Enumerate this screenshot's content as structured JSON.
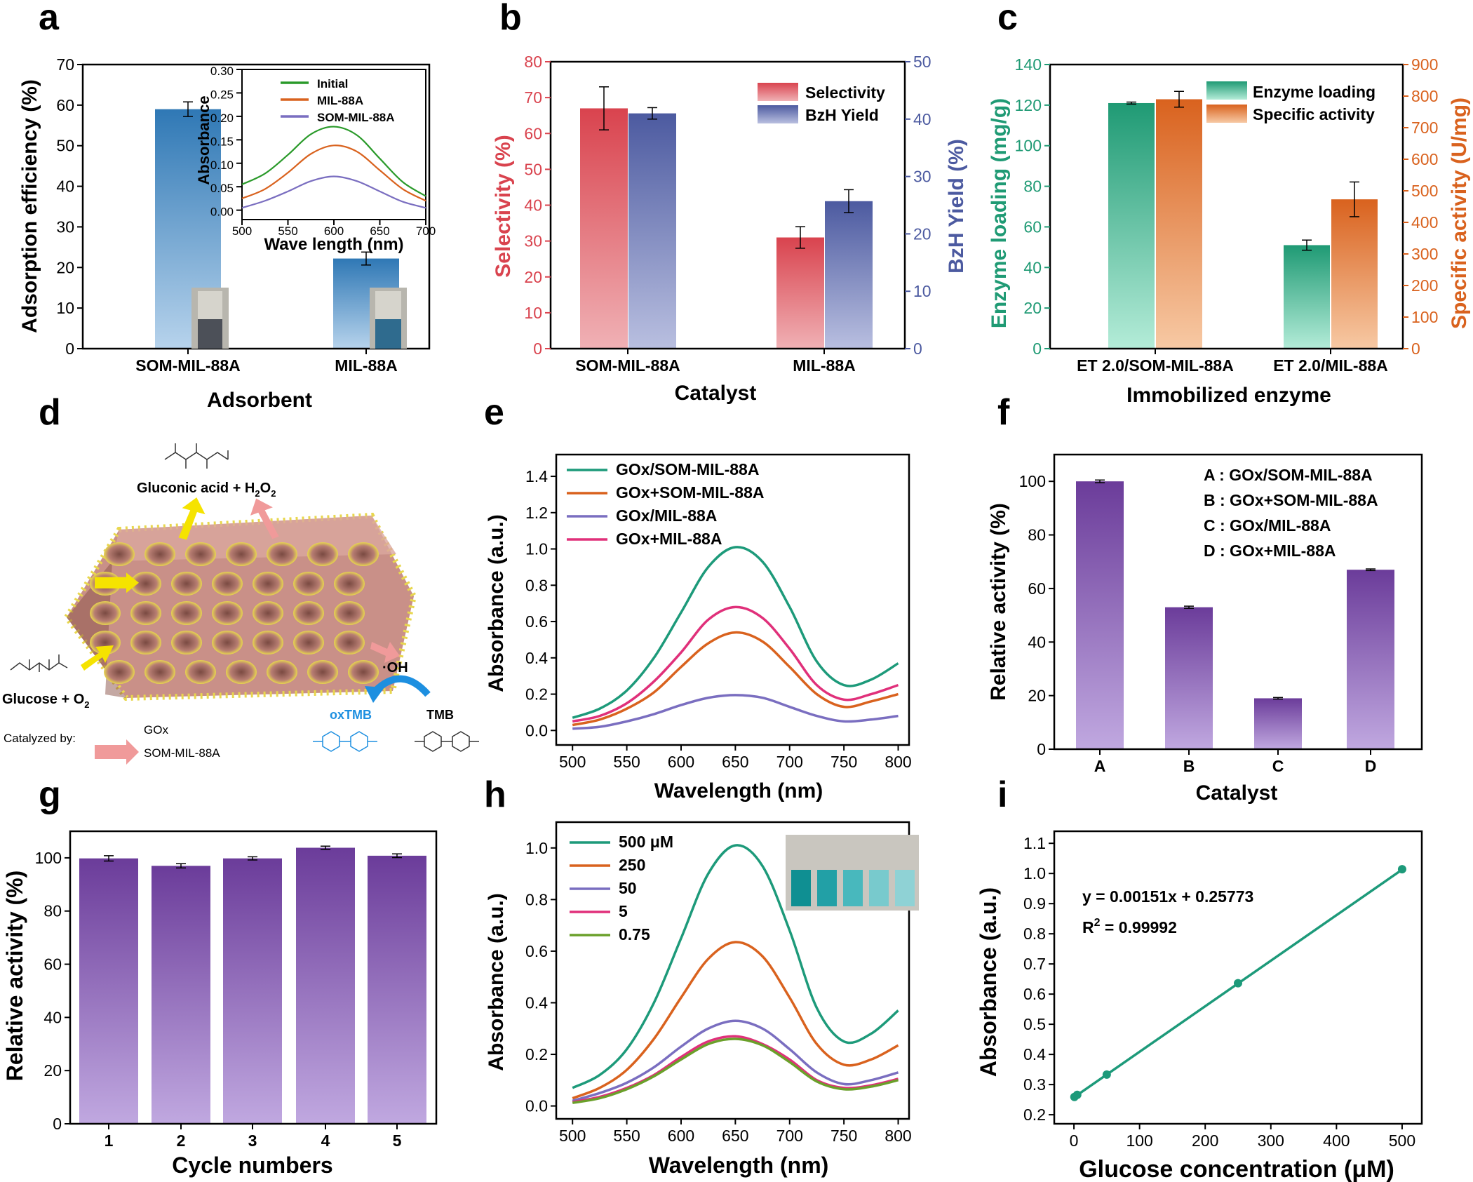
{
  "panels": {
    "a": {
      "letter": "a",
      "xlabel": "Adsorbent",
      "ylabel": "Adsorption efficiency (%)",
      "categories": [
        "SOM-MIL-88A",
        "MIL-88A"
      ],
      "yticks": [
        "0",
        "10",
        "20",
        "30",
        "40",
        "50",
        "60",
        "70"
      ],
      "inset": {
        "xlabel": "Wave length (nm)",
        "ylabel": "Absorbance",
        "xticks": [
          "500",
          "550",
          "600",
          "650",
          "700"
        ],
        "yticks": [
          "0.00",
          "0.05",
          "0.10",
          "0.15",
          "0.20",
          "0.25",
          "0.30"
        ],
        "legend": [
          "Initial",
          "MIL-88A",
          "SOM-MIL-88A"
        ]
      }
    },
    "b": {
      "letter": "b",
      "xlabel": "Catalyst",
      "ylabel_left": "Selectivity (%)",
      "ylabel_right": "BzH Yield (%)",
      "categories": [
        "SOM-MIL-88A",
        "MIL-88A"
      ],
      "yticks_left": [
        "0",
        "10",
        "20",
        "30",
        "40",
        "50",
        "60",
        "70",
        "80"
      ],
      "yticks_right": [
        "0",
        "10",
        "20",
        "30",
        "40",
        "50"
      ],
      "legend": [
        "Selectivity",
        "BzH Yield"
      ]
    },
    "c": {
      "letter": "c",
      "xlabel": "Immobilized enzyme",
      "ylabel_left": "Enzyme loading (mg/g)",
      "ylabel_right": "Specific activity (U/mg)",
      "categories": [
        "ET 2.0/SOM-MIL-88A",
        "ET 2.0/MIL-88A"
      ],
      "yticks_left": [
        "0",
        "20",
        "40",
        "60",
        "80",
        "100",
        "120",
        "140"
      ],
      "yticks_right": [
        "0",
        "100",
        "200",
        "300",
        "400",
        "500",
        "600",
        "700",
        "800",
        "900"
      ],
      "legend": [
        "Enzyme loading",
        "Specific activity"
      ]
    },
    "d": {
      "letter": "d",
      "product": "Gluconic acid + H",
      "product_sub": "2",
      "product_tail": "O",
      "product_sub2": "2",
      "substrate": "Glucose + O",
      "substrate_sub": "2",
      "oh": "·OH",
      "ox_tmb": "oxTMB",
      "tmb": "TMB",
      "catalyzed_by": "Catalyzed by:",
      "key_gox": "GOx",
      "key_som": "SOM-MIL-88A"
    },
    "e": {
      "letter": "e",
      "xlabel": "Wavelength (nm)",
      "ylabel": "Absorbance (a.u.)",
      "xticks": [
        "500",
        "550",
        "600",
        "650",
        "700",
        "750",
        "800"
      ],
      "yticks": [
        "0.0",
        "0.2",
        "0.4",
        "0.6",
        "0.8",
        "1.0",
        "1.2",
        "1.4"
      ],
      "legend": [
        "GOx/SOM-MIL-88A",
        "GOx+SOM-MIL-88A",
        "GOx/MIL-88A",
        "GOx+MIL-88A"
      ]
    },
    "f": {
      "letter": "f",
      "xlabel": "Catalyst",
      "ylabel": "Relative activity (%)",
      "categories": [
        "A",
        "B",
        "C",
        "D"
      ],
      "yticks": [
        "0",
        "20",
        "40",
        "60",
        "80",
        "100"
      ],
      "legend": [
        "A : GOx/SOM-MIL-88A",
        "B : GOx+SOM-MIL-88A",
        "C : GOx/MIL-88A",
        "D : GOx+MIL-88A"
      ]
    },
    "g": {
      "letter": "g",
      "xlabel": "Cycle numbers",
      "ylabel": "Relative activity (%)",
      "categories": [
        "1",
        "2",
        "3",
        "4",
        "5"
      ],
      "yticks": [
        "0",
        "20",
        "40",
        "60",
        "80",
        "100"
      ]
    },
    "h": {
      "letter": "h",
      "xlabel": "Wavelength (nm)",
      "ylabel": "Absorbance (a.u.)",
      "xticks": [
        "500",
        "550",
        "600",
        "650",
        "700",
        "750",
        "800"
      ],
      "yticks": [
        "0.0",
        "0.2",
        "0.4",
        "0.6",
        "0.8",
        "1.0"
      ],
      "legend": [
        "500 μM",
        "250",
        "50",
        "5",
        "0.75"
      ]
    },
    "i": {
      "letter": "i",
      "xlabel": "Glucose concentration (μM)",
      "ylabel": "Absorbance (a.u.)",
      "xticks": [
        "0",
        "100",
        "200",
        "300",
        "400",
        "500"
      ],
      "yticks": [
        "0.2",
        "0.3",
        "0.4",
        "0.5",
        "0.6",
        "0.7",
        "0.8",
        "0.9",
        "1.0",
        "1.1"
      ],
      "equation": "y = 0.00151x + 0.25773",
      "r2_prefix": "R",
      "r2_sup": "2",
      "r2_suffix": " = 0.99992"
    }
  },
  "colors": {
    "blue_bar": "#2f78b5",
    "red_bar": "#d9434e",
    "navy_bar": "#4c5aa0",
    "green_bar": "#1f9a74",
    "orange_bar": "#d9621e",
    "purple_bar": "#6b3c9a",
    "teal_line": "#1d9a7a",
    "orange_line": "#d9621e",
    "lavender_line": "#7a6ec0",
    "magenta_line": "#e0307a",
    "olive_line": "#6aa02a",
    "inset_green": "#2a9a2a"
  },
  "chart_data": [
    {
      "panel": "a",
      "type": "bar",
      "categories": [
        "SOM-MIL-88A",
        "MIL-88A"
      ],
      "values": [
        59.0,
        22.2
      ],
      "errors": [
        1.8,
        1.6
      ],
      "xlabel": "Adsorbent",
      "ylabel": "Adsorption efficiency (%)",
      "ylim": [
        0,
        70
      ]
    },
    {
      "panel": "a-inset",
      "type": "line",
      "xlabel": "Wave length (nm)",
      "ylabel": "Absorbance",
      "xlim": [
        500,
        700
      ],
      "ylim": [
        -0.02,
        0.3
      ],
      "x": [
        500,
        525,
        550,
        575,
        600,
        625,
        650,
        675,
        700
      ],
      "series": [
        {
          "name": "Initial",
          "values": [
            0.055,
            0.078,
            0.118,
            0.162,
            0.178,
            0.16,
            0.11,
            0.06,
            0.03
          ]
        },
        {
          "name": "MIL-88A",
          "values": [
            0.025,
            0.045,
            0.08,
            0.12,
            0.138,
            0.125,
            0.085,
            0.045,
            0.02
          ]
        },
        {
          "name": "SOM-MIL-88A",
          "values": [
            0.005,
            0.02,
            0.04,
            0.062,
            0.072,
            0.062,
            0.04,
            0.018,
            0.005
          ]
        }
      ]
    },
    {
      "panel": "b",
      "type": "bar",
      "categories": [
        "SOM-MIL-88A",
        "MIL-88A"
      ],
      "series": [
        {
          "name": "Selectivity",
          "axis": "left",
          "values": [
            67.0,
            31.0
          ],
          "errors": [
            6.0,
            3.0
          ]
        },
        {
          "name": "BzH Yield",
          "axis": "right",
          "values": [
            41.0,
            25.7
          ],
          "errors": [
            1.0,
            2.0
          ]
        }
      ],
      "xlabel": "Catalyst",
      "ylabel": "Selectivity (%)",
      "ylabel_right": "BzH Yield (%)",
      "ylim": [
        0,
        80
      ],
      "ylim_right": [
        0,
        50
      ]
    },
    {
      "panel": "c",
      "type": "bar",
      "categories": [
        "ET 2.0/SOM-MIL-88A",
        "ET 2.0/MIL-88A"
      ],
      "series": [
        {
          "name": "Enzyme loading",
          "axis": "left",
          "values": [
            121.0,
            51.0
          ],
          "errors": [
            0.5,
            2.5
          ]
        },
        {
          "name": "Specific activity",
          "axis": "right",
          "values": [
            790,
            473
          ],
          "errors": [
            25,
            55
          ]
        }
      ],
      "xlabel": "Immobilized enzyme",
      "ylabel": "Enzyme loading (mg/g)",
      "ylabel_right": "Specific activity (U/mg)",
      "ylim": [
        0,
        140
      ],
      "ylim_right": [
        0,
        900
      ]
    },
    {
      "panel": "e",
      "type": "line",
      "xlabel": "Wavelength (nm)",
      "ylabel": "Absorbance (a.u.)",
      "xlim": [
        485,
        810
      ],
      "ylim": [
        -0.08,
        1.52
      ],
      "x": [
        500,
        525,
        550,
        575,
        600,
        625,
        650,
        675,
        700,
        725,
        750,
        775,
        800
      ],
      "series": [
        {
          "name": "GOx/SOM-MIL-88A",
          "values": [
            0.07,
            0.12,
            0.22,
            0.4,
            0.65,
            0.9,
            1.01,
            0.93,
            0.68,
            0.38,
            0.25,
            0.28,
            0.37
          ]
        },
        {
          "name": "GOx+SOM-MIL-88A",
          "values": [
            0.03,
            0.06,
            0.12,
            0.21,
            0.35,
            0.48,
            0.54,
            0.49,
            0.35,
            0.2,
            0.13,
            0.16,
            0.2
          ]
        },
        {
          "name": "GOx/MIL-88A",
          "values": [
            0.01,
            0.02,
            0.05,
            0.09,
            0.14,
            0.18,
            0.195,
            0.18,
            0.13,
            0.08,
            0.05,
            0.06,
            0.08
          ]
        },
        {
          "name": "GOx+MIL-88A",
          "values": [
            0.05,
            0.08,
            0.15,
            0.27,
            0.43,
            0.61,
            0.68,
            0.62,
            0.45,
            0.25,
            0.17,
            0.2,
            0.25
          ]
        }
      ]
    },
    {
      "panel": "f",
      "type": "bar",
      "categories": [
        "A",
        "B",
        "C",
        "D"
      ],
      "values": [
        100,
        53,
        19,
        67
      ],
      "errors": [
        0.5,
        0.4,
        0.3,
        0.3
      ],
      "xlabel": "Catalyst",
      "ylabel": "Relative activity (%)",
      "ylim": [
        0,
        110
      ]
    },
    {
      "panel": "g",
      "type": "bar",
      "categories": [
        "1",
        "2",
        "3",
        "4",
        "5"
      ],
      "values": [
        99.8,
        97.0,
        99.8,
        103.8,
        100.8
      ],
      "errors": [
        1.0,
        0.8,
        0.6,
        0.6,
        0.7
      ],
      "xlabel": "Cycle numbers",
      "ylabel": "Relative activity (%)",
      "ylim": [
        0,
        110
      ]
    },
    {
      "panel": "h",
      "type": "line",
      "xlabel": "Wavelength (nm)",
      "ylabel": "Absorbance (a.u.)",
      "xlim": [
        485,
        810
      ],
      "ylim": [
        -0.05,
        1.1
      ],
      "x": [
        500,
        525,
        550,
        575,
        600,
        625,
        650,
        675,
        700,
        725,
        750,
        775,
        800
      ],
      "series": [
        {
          "name": "500 μM",
          "values": [
            0.07,
            0.12,
            0.22,
            0.4,
            0.65,
            0.9,
            1.01,
            0.93,
            0.68,
            0.38,
            0.25,
            0.28,
            0.37
          ]
        },
        {
          "name": "250",
          "values": [
            0.03,
            0.07,
            0.14,
            0.26,
            0.42,
            0.57,
            0.635,
            0.58,
            0.42,
            0.24,
            0.16,
            0.18,
            0.235
          ]
        },
        {
          "name": "50",
          "values": [
            0.02,
            0.05,
            0.09,
            0.15,
            0.23,
            0.3,
            0.33,
            0.3,
            0.22,
            0.13,
            0.085,
            0.1,
            0.13
          ]
        },
        {
          "name": "5",
          "values": [
            0.015,
            0.035,
            0.07,
            0.12,
            0.19,
            0.25,
            0.27,
            0.24,
            0.18,
            0.1,
            0.07,
            0.08,
            0.105
          ]
        },
        {
          "name": "0.75",
          "values": [
            0.012,
            0.03,
            0.065,
            0.115,
            0.18,
            0.24,
            0.26,
            0.235,
            0.17,
            0.095,
            0.065,
            0.075,
            0.1
          ]
        }
      ]
    },
    {
      "panel": "i",
      "type": "scatter",
      "xlabel": "Glucose concentration (μM)",
      "ylabel": "Absorbance (a.u.)",
      "xlim": [
        -30,
        530
      ],
      "ylim": [
        0.17,
        1.14
      ],
      "x": [
        0.75,
        5,
        50,
        250,
        500
      ],
      "values": [
        0.259,
        0.266,
        0.333,
        0.636,
        1.014
      ],
      "fit": {
        "slope": 0.00151,
        "intercept": 0.25773
      }
    }
  ]
}
